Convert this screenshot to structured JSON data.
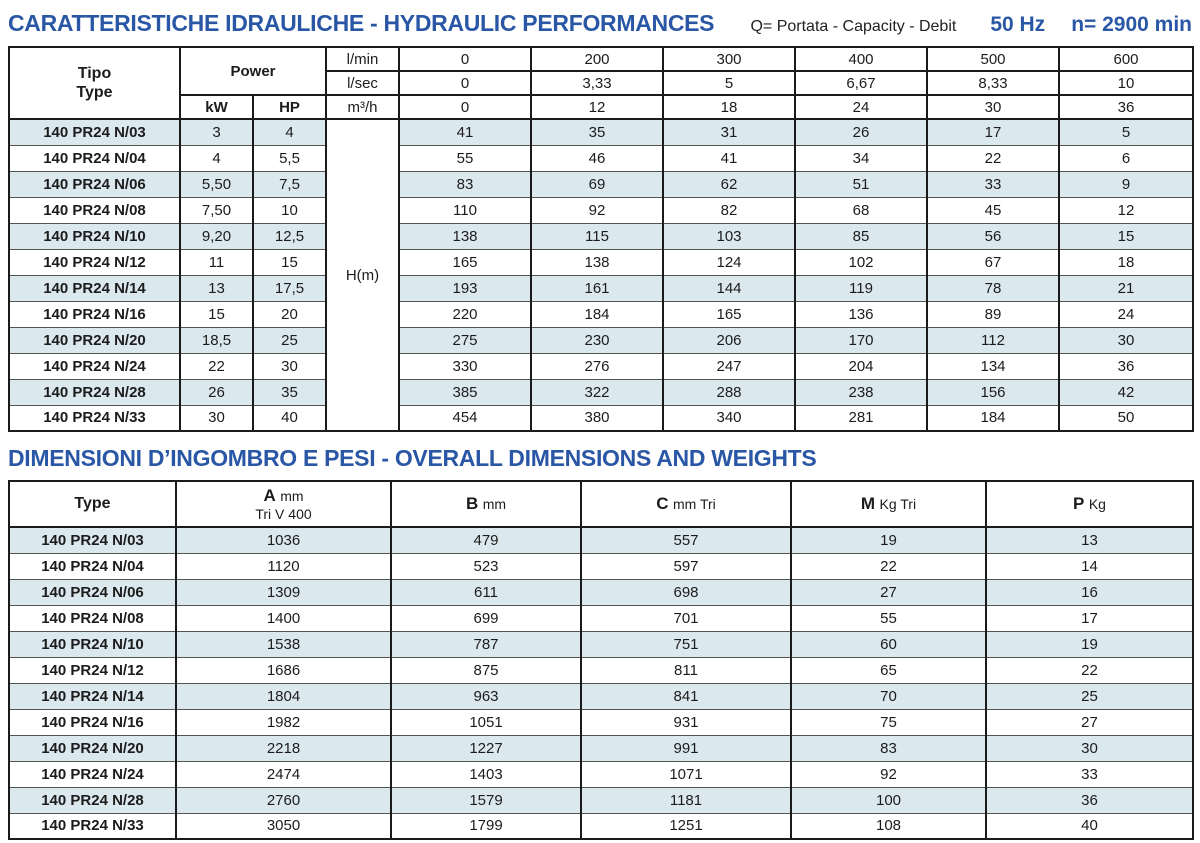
{
  "hydraulic": {
    "title": "CARATTERISTICHE IDRAULICHE - HYDRAULIC PERFORMANCES",
    "flow_legend": "Q= Portata - Capacity - Debit",
    "frequency": "50 Hz",
    "speed": "n= 2900 min",
    "header": {
      "tipo": "Tipo",
      "type": "Type",
      "power": "Power",
      "kw": "kW",
      "hp": "HP"
    },
    "head_label": "H(m)",
    "flow": [
      {
        "unit": "l/min",
        "values": [
          "0",
          "200",
          "300",
          "400",
          "500",
          "600"
        ]
      },
      {
        "unit": "l/sec",
        "values": [
          "0",
          "3,33",
          "5",
          "6,67",
          "8,33",
          "10"
        ]
      },
      {
        "unit": "m³/h",
        "values": [
          "0",
          "12",
          "18",
          "24",
          "30",
          "36"
        ]
      }
    ],
    "rows": [
      {
        "model": "140 PR24 N/03",
        "kw": "3",
        "hp": "4",
        "h": [
          "41",
          "35",
          "31",
          "26",
          "17",
          "5"
        ]
      },
      {
        "model": "140 PR24 N/04",
        "kw": "4",
        "hp": "5,5",
        "h": [
          "55",
          "46",
          "41",
          "34",
          "22",
          "6"
        ]
      },
      {
        "model": "140 PR24 N/06",
        "kw": "5,50",
        "hp": "7,5",
        "h": [
          "83",
          "69",
          "62",
          "51",
          "33",
          "9"
        ]
      },
      {
        "model": "140 PR24 N/08",
        "kw": "7,50",
        "hp": "10",
        "h": [
          "110",
          "92",
          "82",
          "68",
          "45",
          "12"
        ]
      },
      {
        "model": "140 PR24 N/10",
        "kw": "9,20",
        "hp": "12,5",
        "h": [
          "138",
          "115",
          "103",
          "85",
          "56",
          "15"
        ]
      },
      {
        "model": "140 PR24 N/12",
        "kw": "11",
        "hp": "15",
        "h": [
          "165",
          "138",
          "124",
          "102",
          "67",
          "18"
        ]
      },
      {
        "model": "140 PR24 N/14",
        "kw": "13",
        "hp": "17,5",
        "h": [
          "193",
          "161",
          "144",
          "119",
          "78",
          "21"
        ]
      },
      {
        "model": "140 PR24 N/16",
        "kw": "15",
        "hp": "20",
        "h": [
          "220",
          "184",
          "165",
          "136",
          "89",
          "24"
        ]
      },
      {
        "model": "140 PR24 N/20",
        "kw": "18,5",
        "hp": "25",
        "h": [
          "275",
          "230",
          "206",
          "170",
          "112",
          "30"
        ]
      },
      {
        "model": "140 PR24 N/24",
        "kw": "22",
        "hp": "30",
        "h": [
          "330",
          "276",
          "247",
          "204",
          "134",
          "36"
        ]
      },
      {
        "model": "140 PR24 N/28",
        "kw": "26",
        "hp": "35",
        "h": [
          "385",
          "322",
          "288",
          "238",
          "156",
          "42"
        ]
      },
      {
        "model": "140 PR24 N/33",
        "kw": "30",
        "hp": "40",
        "h": [
          "454",
          "380",
          "340",
          "281",
          "184",
          "50"
        ]
      }
    ]
  },
  "dimensions": {
    "title": "DIMENSIONI D’INGOMBRO E PESI - OVERALL DIMENSIONS AND WEIGHTS",
    "columns": [
      {
        "letter": "Type",
        "unit": "",
        "sub": ""
      },
      {
        "letter": "A",
        "unit": "mm",
        "sub": "Tri V 400"
      },
      {
        "letter": "B",
        "unit": "mm",
        "sub": ""
      },
      {
        "letter": "C",
        "unit": "mm Tri",
        "sub": ""
      },
      {
        "letter": "M",
        "unit": "Kg Tri",
        "sub": ""
      },
      {
        "letter": "P",
        "unit": "Kg",
        "sub": ""
      }
    ],
    "rows": [
      {
        "model": "140 PR24 N/03",
        "values": [
          "1036",
          "479",
          "557",
          "19",
          "13"
        ]
      },
      {
        "model": "140 PR24 N/04",
        "values": [
          "1120",
          "523",
          "597",
          "22",
          "14"
        ]
      },
      {
        "model": "140 PR24 N/06",
        "values": [
          "1309",
          "611",
          "698",
          "27",
          "16"
        ]
      },
      {
        "model": "140 PR24 N/08",
        "values": [
          "1400",
          "699",
          "701",
          "55",
          "17"
        ]
      },
      {
        "model": "140 PR24 N/10",
        "values": [
          "1538",
          "787",
          "751",
          "60",
          "19"
        ]
      },
      {
        "model": "140 PR24 N/12",
        "values": [
          "1686",
          "875",
          "811",
          "65",
          "22"
        ]
      },
      {
        "model": "140 PR24 N/14",
        "values": [
          "1804",
          "963",
          "841",
          "70",
          "25"
        ]
      },
      {
        "model": "140 PR24 N/16",
        "values": [
          "1982",
          "1051",
          "931",
          "75",
          "27"
        ]
      },
      {
        "model": "140 PR24 N/20",
        "values": [
          "2218",
          "1227",
          "991",
          "83",
          "30"
        ]
      },
      {
        "model": "140 PR24 N/24",
        "values": [
          "2474",
          "1403",
          "1071",
          "92",
          "33"
        ]
      },
      {
        "model": "140 PR24 N/28",
        "values": [
          "2760",
          "1579",
          "1181",
          "100",
          "36"
        ]
      },
      {
        "model": "140 PR24 N/33",
        "values": [
          "3050",
          "1799",
          "1251",
          "108",
          "40"
        ]
      }
    ]
  },
  "colors": {
    "accent_blue": "#2a57a5",
    "row_shade": "#dbe8ee",
    "grid_dark": "#1a1a1a",
    "grid_thin": "#555555"
  }
}
